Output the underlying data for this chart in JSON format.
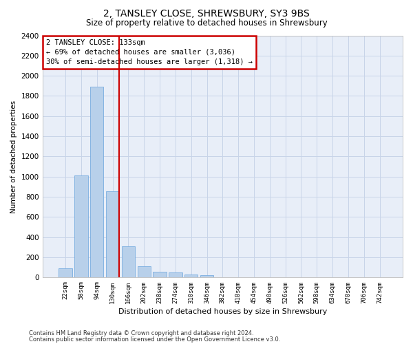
{
  "title": "2, TANSLEY CLOSE, SHREWSBURY, SY3 9BS",
  "subtitle": "Size of property relative to detached houses in Shrewsbury",
  "xlabel": "Distribution of detached houses by size in Shrewsbury",
  "ylabel": "Number of detached properties",
  "bar_labels": [
    "22sqm",
    "58sqm",
    "94sqm",
    "130sqm",
    "166sqm",
    "202sqm",
    "238sqm",
    "274sqm",
    "310sqm",
    "346sqm",
    "382sqm",
    "418sqm",
    "454sqm",
    "490sqm",
    "526sqm",
    "562sqm",
    "598sqm",
    "634sqm",
    "670sqm",
    "706sqm",
    "742sqm"
  ],
  "bar_values": [
    95,
    1010,
    1895,
    855,
    310,
    115,
    58,
    48,
    30,
    22,
    0,
    0,
    0,
    0,
    0,
    0,
    0,
    0,
    0,
    0,
    0
  ],
  "bar_color": "#b8d0ea",
  "bar_edgecolor": "#7aade0",
  "highlight_color": "#cc0000",
  "ylim": [
    0,
    2400
  ],
  "yticks": [
    0,
    200,
    400,
    600,
    800,
    1000,
    1200,
    1400,
    1600,
    1800,
    2000,
    2200,
    2400
  ],
  "annotation_title": "2 TANSLEY CLOSE: 133sqm",
  "annotation_line1": "← 69% of detached houses are smaller (3,036)",
  "annotation_line2": "30% of semi-detached houses are larger (1,318) →",
  "annotation_box_color": "#cc0000",
  "grid_color": "#c8d4e8",
  "bg_color": "#e8eef8",
  "footnote1": "Contains HM Land Registry data © Crown copyright and database right 2024.",
  "footnote2": "Contains public sector information licensed under the Open Government Licence v3.0."
}
